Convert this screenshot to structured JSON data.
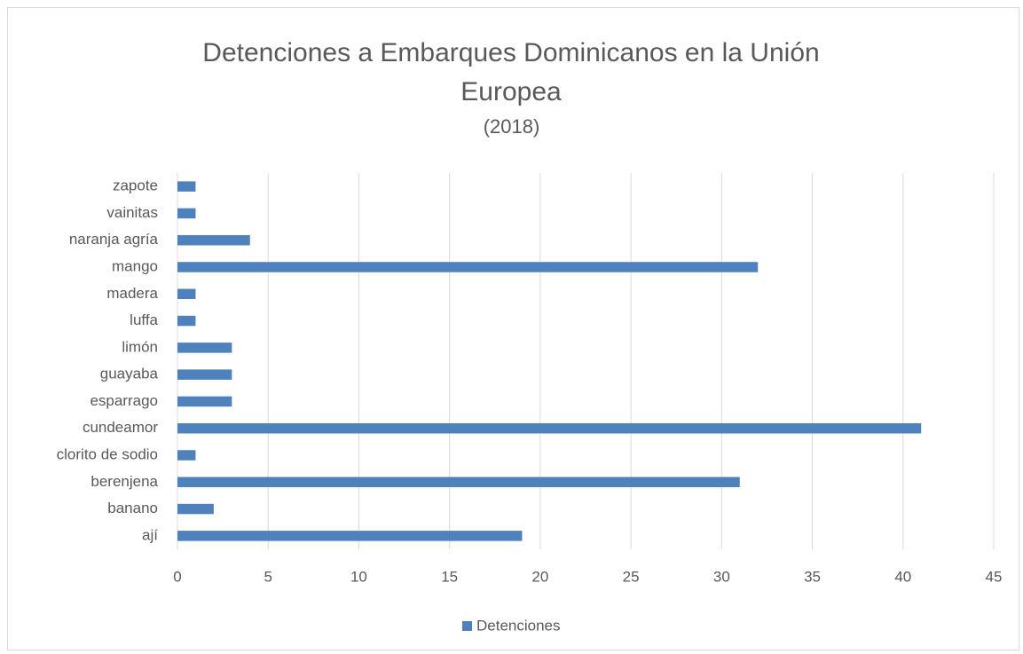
{
  "chart_data": {
    "type": "bar",
    "orientation": "horizontal",
    "title": "Detenciones a Embarques Dominicanos en la Unión Europea",
    "subtitle": "(2018)",
    "categories": [
      "ají",
      "banano",
      "berenjena",
      "clorito de sodio",
      "cundeamor",
      "esparrago",
      "guayaba",
      "limón",
      "luffa",
      "madera",
      "mango",
      "naranja agría",
      "vainitas",
      "zapote"
    ],
    "series": [
      {
        "name": "Detenciones",
        "color": "#4f81bd",
        "values": [
          19,
          2,
          31,
          1,
          41,
          3,
          3,
          3,
          1,
          1,
          32,
          4,
          1,
          1
        ]
      }
    ],
    "xlim": [
      0,
      45
    ],
    "xticks": [
      0,
      5,
      10,
      15,
      20,
      25,
      30,
      35,
      40,
      45
    ],
    "grid": true,
    "legend": "bottom"
  }
}
